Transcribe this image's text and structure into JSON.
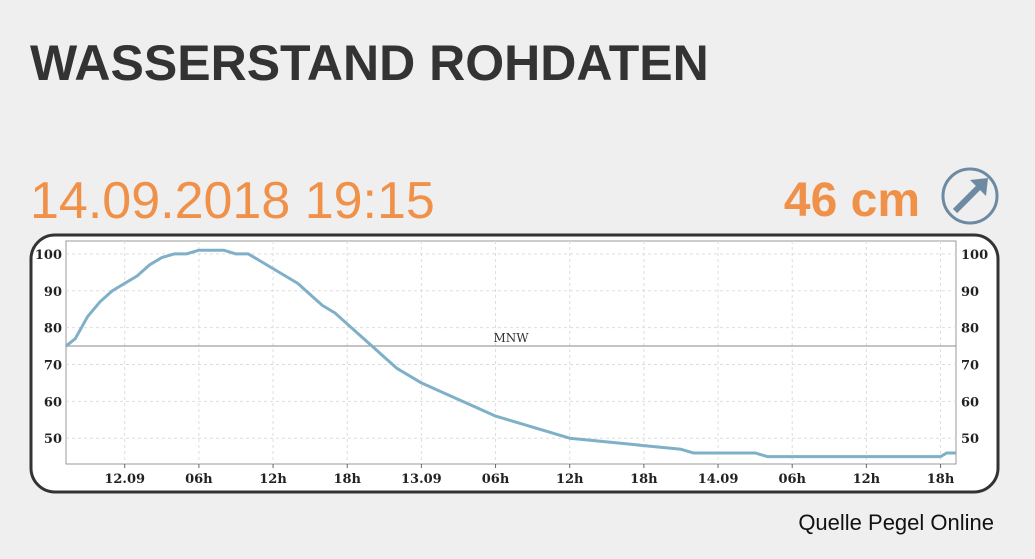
{
  "title": "WASSERSTAND ROHDATEN",
  "timestamp": "14.09.2018 19:15",
  "current_level": "46 cm",
  "source": "Quelle Pegel Online",
  "chart_data": {
    "type": "line",
    "x": [
      "11.09 19:15",
      "11.09 20:00",
      "11.09 21:00",
      "11.09 22:00",
      "11.09 23:00",
      "12.09 00:00",
      "12.09 01:00",
      "12.09 02:00",
      "12.09 03:00",
      "12.09 04:00",
      "12.09 05:00",
      "12.09 06:00",
      "12.09 08:00",
      "12.09 09:00",
      "12.09 10:00",
      "12.09 11:00",
      "12.09 12:00",
      "12.09 13:00",
      "12.09 14:00",
      "12.09 15:00",
      "12.09 16:00",
      "12.09 17:00",
      "12.09 18:00",
      "12.09 19:00",
      "12.09 20:00",
      "12.09 21:00",
      "12.09 22:00",
      "12.09 23:00",
      "13.09 00:00",
      "13.09 02:00",
      "13.09 04:00",
      "13.09 06:00",
      "13.09 08:00",
      "13.09 10:00",
      "13.09 12:00",
      "13.09 15:00",
      "13.09 18:00",
      "13.09 21:00",
      "13.09 22:00",
      "14.09 03:00",
      "14.09 04:00",
      "14.09 18:00",
      "14.09 18:30",
      "14.09 19:15"
    ],
    "series": [
      {
        "color": "#7fb0c8",
        "values": [
          75,
          77,
          83,
          87,
          90,
          92,
          94,
          97,
          99,
          100,
          100,
          101,
          101,
          100,
          100,
          98,
          96,
          94,
          92,
          89,
          86,
          84,
          81,
          78,
          75,
          72,
          69,
          67,
          65,
          62,
          59,
          56,
          54,
          52,
          50,
          49,
          48,
          47,
          46,
          46,
          45,
          45,
          46,
          46
        ]
      }
    ],
    "xlim": [
      "11.09 19:15",
      "14.09 19:15"
    ],
    "xticks": [
      {
        "value": "12.09 00:00",
        "label": "12.09"
      },
      {
        "value": "12.09 06:00",
        "label": "06h"
      },
      {
        "value": "12.09 12:00",
        "label": "12h"
      },
      {
        "value": "12.09 18:00",
        "label": "18h"
      },
      {
        "value": "13.09 00:00",
        "label": "13.09"
      },
      {
        "value": "13.09 06:00",
        "label": "06h"
      },
      {
        "value": "13.09 12:00",
        "label": "12h"
      },
      {
        "value": "13.09 18:00",
        "label": "18h"
      },
      {
        "value": "14.09 00:00",
        "label": "14.09"
      },
      {
        "value": "14.09 06:00",
        "label": "06h"
      },
      {
        "value": "14.09 12:00",
        "label": "12h"
      },
      {
        "value": "14.09 18:00",
        "label": "18h"
      }
    ],
    "ylim": [
      43,
      103.5
    ],
    "yticks": [
      50,
      60,
      70,
      80,
      90,
      100
    ],
    "reference_line": {
      "value": 75,
      "label": "MNW"
    },
    "grid": true
  }
}
